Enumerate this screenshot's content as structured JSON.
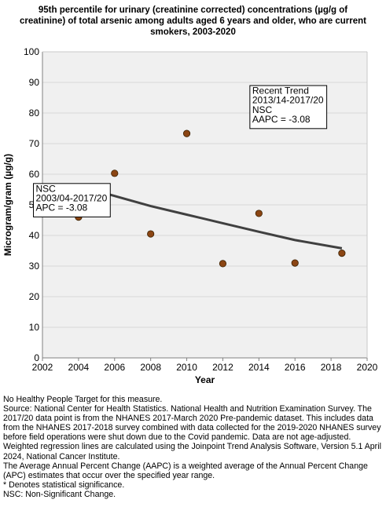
{
  "chart_data": {
    "type": "scatter",
    "title_lines": [
      "95th percentile for urinary (creatinine corrected) concentrations (µg/g of",
      "creatinine) of total arsenic among adults aged 6 years and older, who are current",
      "smokers, 2003-2020"
    ],
    "xlabel": "Year",
    "ylabel": "Microgram/gram (µg/g)",
    "xlim": [
      2002,
      2020
    ],
    "ylim": [
      0,
      100
    ],
    "x_ticks": [
      2002,
      2004,
      2006,
      2008,
      2010,
      2012,
      2014,
      2016,
      2018,
      2020
    ],
    "y_ticks": [
      0,
      10,
      20,
      30,
      40,
      50,
      60,
      70,
      80,
      90,
      100
    ],
    "grid": "horizontal",
    "points": [
      {
        "x": 2004,
        "y": 46
      },
      {
        "x": 2006,
        "y": 60.3
      },
      {
        "x": 2008,
        "y": 40.5
      },
      {
        "x": 2010,
        "y": 73.3
      },
      {
        "x": 2012,
        "y": 30.8
      },
      {
        "x": 2014,
        "y": 47.2
      },
      {
        "x": 2016,
        "y": 31
      },
      {
        "x": 2018.6,
        "y": 34.2
      }
    ],
    "trend_line": [
      {
        "x": 2004,
        "y": 56.2
      },
      {
        "x": 2006,
        "y": 52.9
      },
      {
        "x": 2008,
        "y": 49.6
      },
      {
        "x": 2010,
        "y": 46.8
      },
      {
        "x": 2012,
        "y": 44
      },
      {
        "x": 2014,
        "y": 41.2
      },
      {
        "x": 2016,
        "y": 38.5
      },
      {
        "x": 2018.6,
        "y": 35.8
      }
    ],
    "colors": {
      "marker": "#8B4513",
      "marker_edge": "#3a2000",
      "trend": "#404040",
      "plot_bg": "#f0f0f0",
      "grid": "#d9d9d9"
    },
    "annotations": [
      {
        "name": "recent-trend",
        "anchor": {
          "x": 2013.5,
          "y": 88.2
        },
        "lines": [
          "Recent Trend",
          "2013/14-2017/20",
          "NSC",
          "AAPC = -3.08"
        ]
      },
      {
        "name": "overall-trend",
        "anchor": {
          "x": 2001.5,
          "y": 56.2
        },
        "lines": [
          "NSC",
          "2003/04-2017/20",
          "APC = -3.08"
        ]
      }
    ]
  },
  "notes": [
    "No Healthy People Target for this measure.",
    "Source: National Center for Health Statistics. National Health and Nutrition Examination Survey. The 2017/20 data point is from the NHANES 2017-March 2020 Pre-pandemic dataset. This includes data from the NHANES 2017-2018 survey combined with data collected for the 2019-2020 NHANES survey before field operations were shut down due to the Covid pandemic. Data are not age-adjusted.",
    "Weighted regression lines are calculated using the Joinpoint Trend Analysis Software, Version 5.1 April 2024, National Cancer Institute.",
    "The Average Annual Percent Change (AAPC) is a weighted average of the Annual Percent Change (APC) estimates that occur over the specified year range.",
    "* Denotes statistical significance.",
    "NSC: Non-Significant Change."
  ]
}
